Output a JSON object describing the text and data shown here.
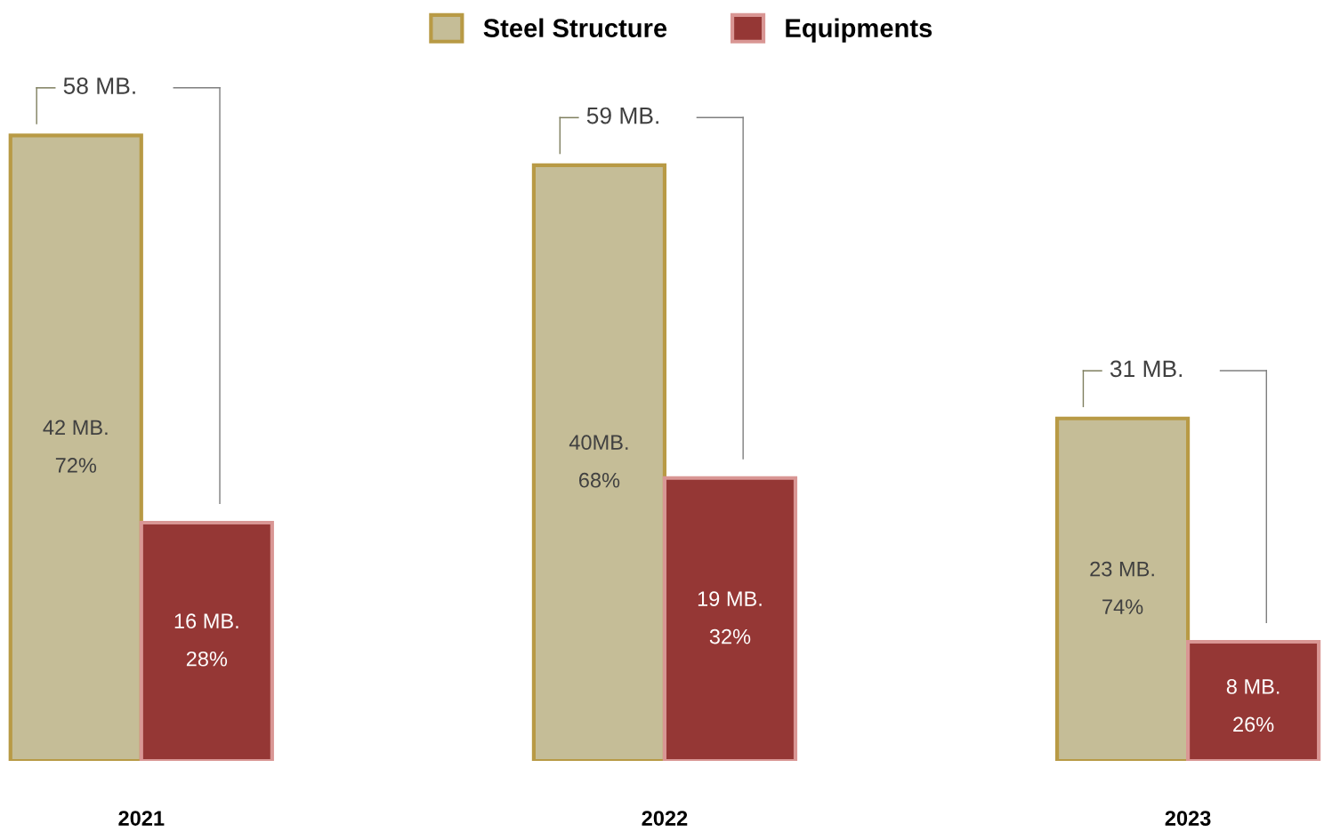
{
  "chart_data": {
    "type": "bar",
    "categories": [
      "2021",
      "2022",
      "2023"
    ],
    "series": [
      {
        "name": "Steel Structure",
        "color": "#c5bd97",
        "values": [
          42,
          40,
          23
        ],
        "value_labels": [
          "42 MB.\n72%",
          "40MB.\n68%",
          "23 MB.\n74%"
        ]
      },
      {
        "name": "Equipments",
        "color": "#953735",
        "values": [
          16,
          19,
          8
        ],
        "value_labels": [
          "16 MB.\n28%",
          "19 MB.\n32%",
          "8 MB.\n26%"
        ]
      }
    ],
    "totals": [
      "58 MB.",
      "59 MB.",
      "31 MB."
    ],
    "legend": "top",
    "grid": false
  }
}
